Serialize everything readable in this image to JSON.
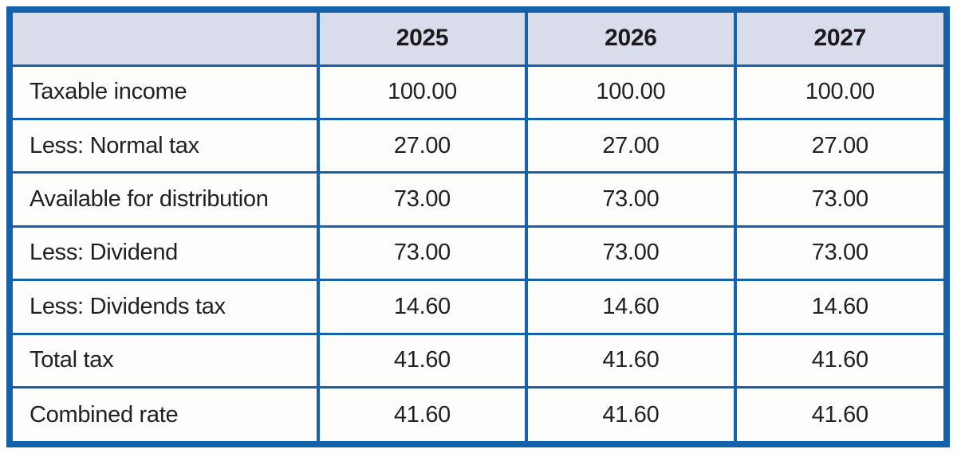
{
  "theme": {
    "border-blue": "#1462ac",
    "header-bg": "#d9dcea",
    "cell-bg": "#fdfdfb",
    "text": "#232020",
    "page-bg": "#ffffff"
  },
  "table": {
    "columns": [
      "",
      "2025",
      "2026",
      "2027"
    ],
    "rows": [
      {
        "label": "Taxable income",
        "values": [
          "100.00",
          "100.00",
          "100.00"
        ]
      },
      {
        "label": "Less: Normal tax",
        "values": [
          "27.00",
          "27.00",
          "27.00"
        ]
      },
      {
        "label": "Available for distribution",
        "values": [
          "73.00",
          "73.00",
          "73.00"
        ]
      },
      {
        "label": "Less: Dividend",
        "values": [
          "73.00",
          "73.00",
          "73.00"
        ]
      },
      {
        "label": "Less: Dividends tax",
        "values": [
          "14.60",
          "14.60",
          "14.60"
        ]
      },
      {
        "label": "Total tax",
        "values": [
          "41.60",
          "41.60",
          "41.60"
        ]
      },
      {
        "label": "Combined rate",
        "values": [
          "41.60",
          "41.60",
          "41.60"
        ]
      }
    ]
  }
}
